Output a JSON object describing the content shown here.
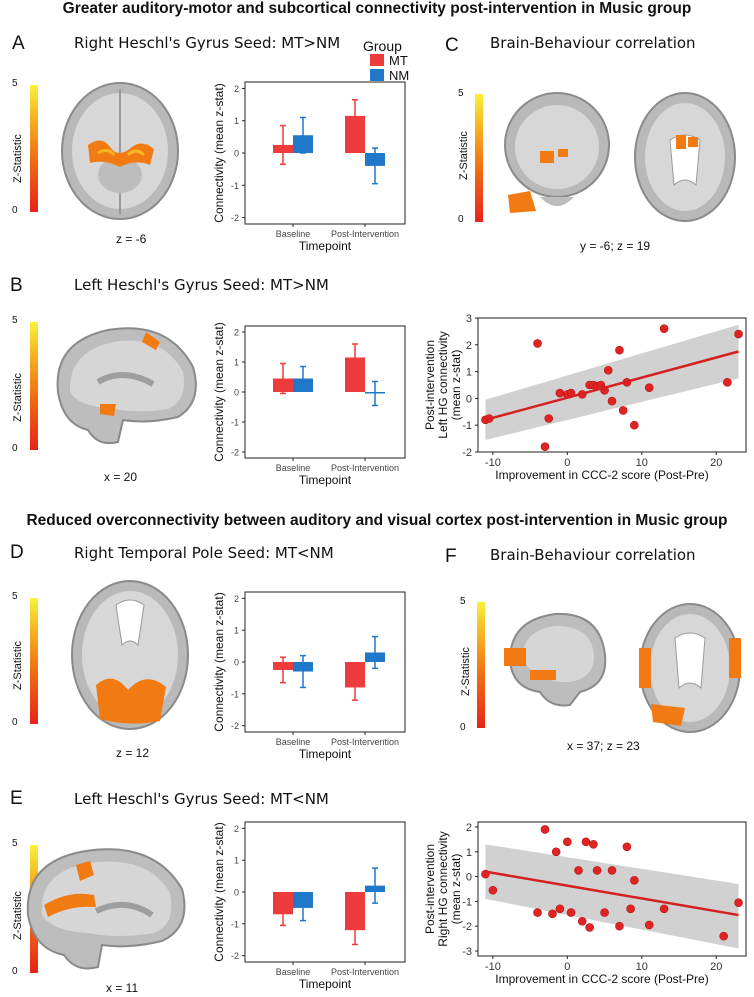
{
  "section1": {
    "title": "Greater auditory-motor and subcortical connectivity post-intervention in Music group"
  },
  "section2": {
    "title": "Reduced overconnectivity between auditory and visual cortex post-intervention in Music group"
  },
  "colorbar": {
    "title": "Z-Statistic",
    "max": "5",
    "min": "0"
  },
  "legend": {
    "title": "Group",
    "mt": "MT",
    "nm": "NM"
  },
  "colors": {
    "mt": "#ee3b3b",
    "nm": "#1f78c8",
    "overlay": "#f27a12",
    "fit": "#d42020",
    "ci": "#c9c9c9"
  },
  "panels": {
    "A": {
      "letter": "A",
      "title": "Right Heschl's Gyrus Seed: MT>NM",
      "coord": "z = -6"
    },
    "B": {
      "letter": "B",
      "title": "Left Heschl's Gyrus Seed: MT>NM",
      "coord": "x = 20"
    },
    "C": {
      "letter": "C",
      "title": "Brain-Behaviour correlation",
      "coord": "y = -6; z = 19"
    },
    "D": {
      "letter": "D",
      "title": "Right Temporal Pole Seed: MT<NM",
      "coord": "z = 12"
    },
    "E": {
      "letter": "E",
      "title": "Left Heschl's Gyrus Seed: MT<NM",
      "coord": "x = 11"
    },
    "F": {
      "letter": "F",
      "title": "Brain-Behaviour correlation",
      "coord": "x = 37; z = 23"
    }
  },
  "chart_data": [
    {
      "id": "barA",
      "type": "bar",
      "xlabel": "Timepoint",
      "ylabel": "Connectivity (mean z-stat)",
      "categories": [
        "Baseline",
        "Post-Intervention"
      ],
      "ylim": [
        -2.2,
        2.2
      ],
      "yticks": [
        "2",
        "1",
        "0",
        "-1",
        "-2"
      ],
      "series": [
        {
          "name": "MT",
          "values": [
            0.25,
            1.15
          ],
          "err": [
            0.6,
            0.5
          ]
        },
        {
          "name": "NM",
          "values": [
            0.55,
            -0.4
          ],
          "err": [
            0.55,
            0.55
          ]
        }
      ]
    },
    {
      "id": "barB",
      "type": "bar",
      "xlabel": "Timepoint",
      "ylabel": "Connectivity (mean z-stat)",
      "categories": [
        "Baseline",
        "Post-Intervention"
      ],
      "ylim": [
        -2.2,
        2.2
      ],
      "yticks": [
        "2",
        "1",
        "0",
        "-1",
        "-2"
      ],
      "series": [
        {
          "name": "MT",
          "values": [
            0.45,
            1.15
          ],
          "err": [
            0.5,
            0.45
          ]
        },
        {
          "name": "NM",
          "values": [
            0.45,
            -0.05
          ],
          "err": [
            0.4,
            0.4
          ]
        }
      ]
    },
    {
      "id": "barD",
      "type": "bar",
      "xlabel": "Timepoint",
      "ylabel": "Connectivity (mean z-stat)",
      "categories": [
        "Baseline",
        "Post-Intervention"
      ],
      "ylim": [
        -2.2,
        2.2
      ],
      "yticks": [
        "2",
        "1",
        "0",
        "-1",
        "-2"
      ],
      "series": [
        {
          "name": "MT",
          "values": [
            -0.25,
            -0.8
          ],
          "err": [
            0.4,
            0.4
          ]
        },
        {
          "name": "NM",
          "values": [
            -0.3,
            0.3
          ],
          "err": [
            0.5,
            0.5
          ]
        }
      ]
    },
    {
      "id": "barE",
      "type": "bar",
      "xlabel": "Timepoint",
      "ylabel": "Connectivity (mean z-stat)",
      "categories": [
        "Baseline",
        "Post-Intervention"
      ],
      "ylim": [
        -2.2,
        2.2
      ],
      "yticks": [
        "2",
        "1",
        "0",
        "-1",
        "-2"
      ],
      "series": [
        {
          "name": "MT",
          "values": [
            -0.7,
            -1.2
          ],
          "err": [
            0.35,
            0.45
          ]
        },
        {
          "name": "NM",
          "values": [
            -0.5,
            0.2
          ],
          "err": [
            0.4,
            0.55
          ]
        }
      ]
    },
    {
      "id": "scatC",
      "type": "scatter",
      "xlabel": "Improvement in CCC-2 score (Post-Pre)",
      "ylabel_lines": [
        "Post-intervention",
        "Left HG connectivity",
        "(mean z-stat)"
      ],
      "xlim": [
        -12,
        24
      ],
      "ylim": [
        -2,
        3
      ],
      "xticks": [
        -10,
        0,
        10,
        20
      ],
      "yticks": [
        -2,
        -1,
        0,
        1,
        2,
        3
      ],
      "x": [
        -11,
        -10.5,
        -4,
        -3,
        -2.5,
        -1,
        0,
        0.5,
        2,
        3,
        3.5,
        4,
        4.5,
        5,
        5.5,
        6,
        7,
        7.5,
        8,
        9,
        11,
        13,
        21.5,
        23
      ],
      "y": [
        -0.8,
        -0.75,
        2.05,
        -1.8,
        -0.75,
        0.2,
        0.15,
        0.2,
        0.15,
        0.5,
        0.5,
        0.45,
        0.5,
        0.3,
        1.05,
        -0.1,
        1.8,
        -0.45,
        0.6,
        -1,
        0.4,
        2.6,
        0.6,
        2.4
      ],
      "fit": {
        "x0": -11,
        "y0": -0.8,
        "x1": 23,
        "y1": 1.75
      },
      "ci": {
        "lo0": -1.55,
        "hi0": -0.05,
        "lo1": 0.75,
        "hi1": 2.75
      }
    },
    {
      "id": "scatF",
      "type": "scatter",
      "xlabel": "Improvement in CCC-2 score (Post-Pre)",
      "ylabel_lines": [
        "Post-intervention",
        "Right HG connectivity",
        "(mean z-stat)"
      ],
      "xlim": [
        -12,
        24
      ],
      "ylim": [
        -3.2,
        2.2
      ],
      "xticks": [
        -10,
        0,
        10,
        20
      ],
      "yticks": [
        -3,
        -2,
        -1,
        0,
        1,
        2
      ],
      "x": [
        -11,
        -10,
        -4,
        -3,
        -2,
        -1.5,
        -1,
        0,
        0.5,
        1.5,
        2,
        2.5,
        3,
        3.5,
        4,
        5,
        6,
        7,
        8,
        8.5,
        9,
        11,
        13,
        21,
        23
      ],
      "y": [
        0.1,
        -0.55,
        -1.45,
        1.9,
        -1.5,
        1,
        -1.3,
        1.4,
        -1.45,
        0.25,
        -1.8,
        1.4,
        -2.05,
        1.3,
        0.25,
        -1.45,
        0.25,
        -2,
        1.2,
        -1.3,
        -0.15,
        -1.95,
        -1.3,
        -2.4,
        -1.05
      ],
      "fit": {
        "x0": -11,
        "y0": 0.2,
        "x1": 23,
        "y1": -1.55
      },
      "ci": {
        "lo0": -0.9,
        "hi0": 1.3,
        "lo1": -2.9,
        "hi1": -0.3
      }
    }
  ]
}
